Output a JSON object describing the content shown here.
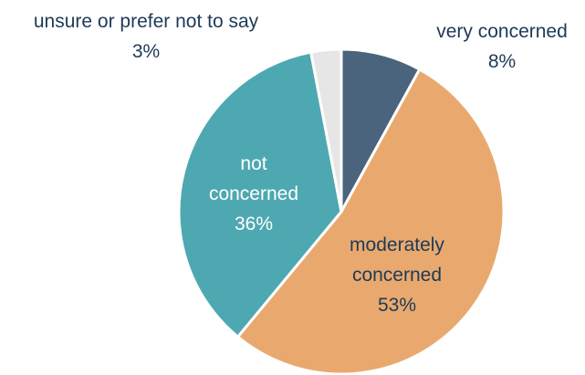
{
  "chart_data": {
    "type": "pie",
    "slices": [
      {
        "label_lines": [
          "very concerned"
        ],
        "value_text": "8%",
        "value": 8,
        "color": "#4a647e",
        "label_color": "#1d3a57",
        "label_placement": "outside-right"
      },
      {
        "label_lines": [
          "moderately",
          "concerned"
        ],
        "value_text": "53%",
        "value": 53,
        "color": "#e9a96e",
        "label_color": "#1d3a57",
        "label_placement": "inside"
      },
      {
        "label_lines": [
          "not",
          "concerned"
        ],
        "value_text": "36%",
        "value": 36,
        "color": "#4ea8b1",
        "label_color": "#ffffff",
        "label_placement": "inside"
      },
      {
        "label_lines": [
          "unsure or prefer not to say"
        ],
        "value_text": "3%",
        "value": 3,
        "color": "#e6e6e6",
        "label_color": "#1d3a57",
        "label_placement": "outside-left"
      }
    ],
    "start": "top",
    "direction": "clockwise",
    "slice_border_color": "#ffffff"
  }
}
